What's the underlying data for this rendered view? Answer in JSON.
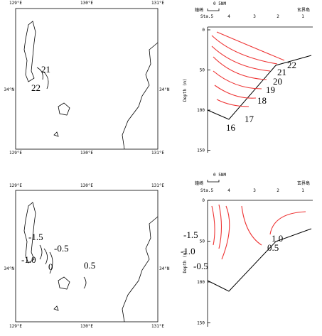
{
  "panels": [
    {
      "map": {
        "lon_labels_top": [
          "129°E",
          "130°E",
          "131°E"
        ],
        "lon_labels_bottom": [
          "129°E",
          "130°E",
          "131°E"
        ],
        "lat_labels": [
          "34°N",
          "34°N"
        ],
        "contour_labels": [
          "21",
          "22"
        ]
      },
      "section": {
        "scale": "0  5NM",
        "place_left": "鐘崎",
        "place_right": "玄界島",
        "stations": [
          "Sta.5",
          "4",
          "3",
          "2",
          "1"
        ],
        "depth_ticks": [
          0,
          50,
          100,
          150
        ],
        "y_label": "Depth (m)",
        "contour_labels": [
          "16",
          "17",
          "18",
          "19",
          "20",
          "21",
          "22"
        ]
      }
    },
    {
      "map": {
        "lon_labels_top": [
          "129°E",
          "130°E",
          "131°E"
        ],
        "lon_labels_bottom": [
          "129°E",
          "130°E",
          "131°E"
        ],
        "lat_labels": [
          "34°N",
          "34°N"
        ],
        "contour_labels": [
          "-1.5",
          "-0.5",
          "-1.0",
          "0",
          "0.5"
        ]
      },
      "section": {
        "scale": "0  5NM",
        "place_left": "鐘崎",
        "place_right": "玄界島",
        "stations": [
          "Sta.5",
          "4",
          "3",
          "2",
          "1"
        ],
        "depth_ticks": [
          0,
          50,
          100,
          150
        ],
        "y_label": "Depth (m)",
        "contour_labels": [
          "-1.5",
          "1.0",
          "-1.0",
          "0.5",
          "-0.5"
        ]
      }
    }
  ]
}
